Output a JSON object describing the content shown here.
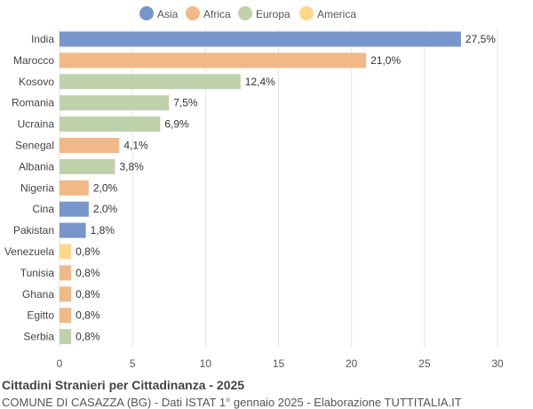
{
  "colors": {
    "Asia": "#7895cc",
    "Africa": "#f0b987",
    "Europa": "#bfd1aa",
    "America": "#fed88a"
  },
  "legend": [
    {
      "name": "Asia",
      "color": "#7895cc"
    },
    {
      "name": "Africa",
      "color": "#f0b987"
    },
    {
      "name": "Europa",
      "color": "#bfd1aa"
    },
    {
      "name": "America",
      "color": "#fed88a"
    }
  ],
  "chart_data": {
    "type": "bar",
    "orientation": "horizontal",
    "title": "Cittadini Stranieri per Cittadinanza - 2025",
    "subtitle": "COMUNE DI CASAZZA (BG) - Dati ISTAT 1° gennaio 2025 - Elaborazione TUTTITALIA.IT",
    "categories": [
      "India",
      "Marocco",
      "Kosovo",
      "Romania",
      "Ucraina",
      "Senegal",
      "Albania",
      "Nigeria",
      "Cina",
      "Pakistan",
      "Venezuela",
      "Tunisia",
      "Ghana",
      "Egitto",
      "Serbia"
    ],
    "values": [
      27.5,
      21.0,
      12.4,
      7.5,
      6.9,
      4.1,
      3.8,
      2.0,
      2.0,
      1.8,
      0.8,
      0.8,
      0.8,
      0.8,
      0.8
    ],
    "value_labels": [
      "27,5%",
      "21,0%",
      "12,4%",
      "7,5%",
      "6,9%",
      "4,1%",
      "3,8%",
      "2,0%",
      "2,0%",
      "1,8%",
      "0,8%",
      "0,8%",
      "0,8%",
      "0,8%",
      "0,8%"
    ],
    "groups": [
      "Asia",
      "Africa",
      "Europa",
      "Europa",
      "Europa",
      "Africa",
      "Europa",
      "Africa",
      "Asia",
      "Asia",
      "America",
      "Africa",
      "Africa",
      "Africa",
      "Europa"
    ],
    "xlim": [
      0,
      30
    ],
    "xticks": [
      0,
      5,
      10,
      15,
      20,
      25,
      30
    ],
    "grid": true,
    "legend_position": "top"
  }
}
